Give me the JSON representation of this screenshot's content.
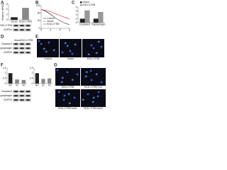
{
  "figure": {
    "panels": [
      "A",
      "B",
      "C",
      "D",
      "E",
      "F",
      "G"
    ],
    "blots": [
      {
        "labels": [
          "EDD-CTRB",
          "GAPDH"
        ]
      },
      {
        "lanes": [
          "Vector",
          "EDD-CTRB"
        ],
        "labels": [
          "Caspase3",
          "Tryptophagm",
          "GAPDH"
        ]
      },
      {
        "labels": [
          "Caspase3",
          "Tryptophagm",
          "GAPDH"
        ]
      }
    ],
    "images": [
      {
        "labels": [
          "Control",
          "Vector",
          "EDD-CTRB"
        ]
      },
      {
        "labels": [
          "EDD-CTRB",
          "EDD-CTRB+Ctrl",
          "EDD-CTRB+sh#1",
          "EDD-CTRB+sh#2"
        ]
      }
    ]
  },
  "chart_data": [
    {
      "type": "bar",
      "ylabel": "Relative mRNA",
      "categories": [
        "Vector",
        "EDD-CTRB"
      ],
      "values": [
        1,
        4.6
      ],
      "colors": [
        "#222222",
        "#888888"
      ],
      "ylim": [
        0,
        6
      ],
      "yticks": [
        0,
        2,
        4,
        6
      ]
    },
    {
      "type": "line",
      "x": [
        0,
        1,
        2,
        3,
        4,
        5,
        6
      ],
      "xlim": [
        0,
        6
      ],
      "xticks": [
        0,
        2,
        4,
        6
      ],
      "ylim": [
        0,
        120
      ],
      "yticks": [
        0,
        40,
        80,
        120
      ],
      "series": [
        {
          "name": "Control",
          "color": "#222222",
          "values": [
            100,
            90,
            75,
            55,
            40,
            28,
            20
          ]
        },
        {
          "name": "Vector",
          "color": "#888888",
          "values": [
            100,
            88,
            73,
            54,
            41,
            27,
            19
          ]
        },
        {
          "name": "EDD-CTRB",
          "color": "#d62728",
          "values": [
            100,
            95,
            88,
            78,
            68,
            58,
            50
          ]
        }
      ]
    },
    {
      "type": "grouped_bar",
      "categories": [
        "Caspase3",
        "Tryptophagm"
      ],
      "ylim": [
        0,
        4
      ],
      "yticks": [
        0,
        1,
        2,
        3,
        4
      ],
      "series": [
        {
          "name": "Vector",
          "color": "#222222",
          "values": [
            1,
            1
          ]
        },
        {
          "name": "EDD-CTRB",
          "color": "#999999",
          "values": [
            3.1,
            2.7
          ]
        }
      ]
    },
    {
      "type": "bar",
      "categories": [
        "NC",
        "#1",
        "#2"
      ],
      "values": [
        1,
        0.4,
        0.35
      ],
      "colors": [
        "#222222",
        "#888888",
        "#888888"
      ],
      "ylim": [
        0,
        1.5
      ],
      "yticks": [
        0,
        0.5,
        1,
        1.5
      ]
    },
    {
      "type": "bar",
      "categories": [
        "NC",
        "#1",
        "#2"
      ],
      "values": [
        1,
        0.45,
        0.5
      ],
      "colors": [
        "#222222",
        "#888888",
        "#888888"
      ],
      "ylim": [
        0,
        1.5
      ],
      "yticks": [
        0,
        0.5,
        1,
        1.5
      ]
    }
  ]
}
